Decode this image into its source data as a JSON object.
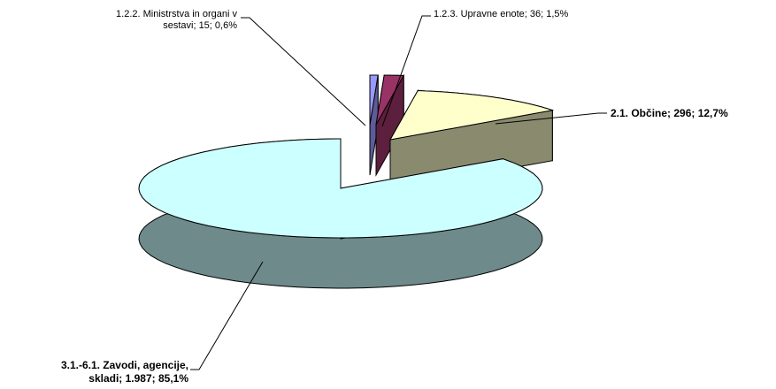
{
  "chart_data": {
    "type": "pie",
    "style": "3d-exploded",
    "legend": "none",
    "slices": [
      {
        "name": "1.2.2. Ministrstva in organi v sestavi",
        "value": 15,
        "percent": "0,6%",
        "label_line1": "1.2.2. Ministrstva in organi v",
        "label_line2": "sestavi; 15; 0,6%",
        "top_color": "#9999ff",
        "side_color": "#5c5c99"
      },
      {
        "name": "1.2.3. Upravne enote",
        "value": 36,
        "percent": "1,5%",
        "label_line1": "1.2.3. Upravne enote; 36; 1,5%",
        "top_color": "#993366",
        "side_color": "#5c1f3d"
      },
      {
        "name": "2.1. Občine",
        "value": 296,
        "percent": "12,7%",
        "label_line1": "2.1.  Občine; 296; 12,7%",
        "top_color": "#ffffcc",
        "side_color": "#8a8a6e"
      },
      {
        "name": "3.1.-6.1. Zavodi, agencije, skladi",
        "value": 1987,
        "percent": "85,1%",
        "label_line1": "3.1.-6.1. Zavodi, agencije,",
        "label_line2": "skladi; 1.987; 85,1%",
        "top_color": "#ccffff",
        "side_color": "#6e8a8a"
      }
    ]
  }
}
